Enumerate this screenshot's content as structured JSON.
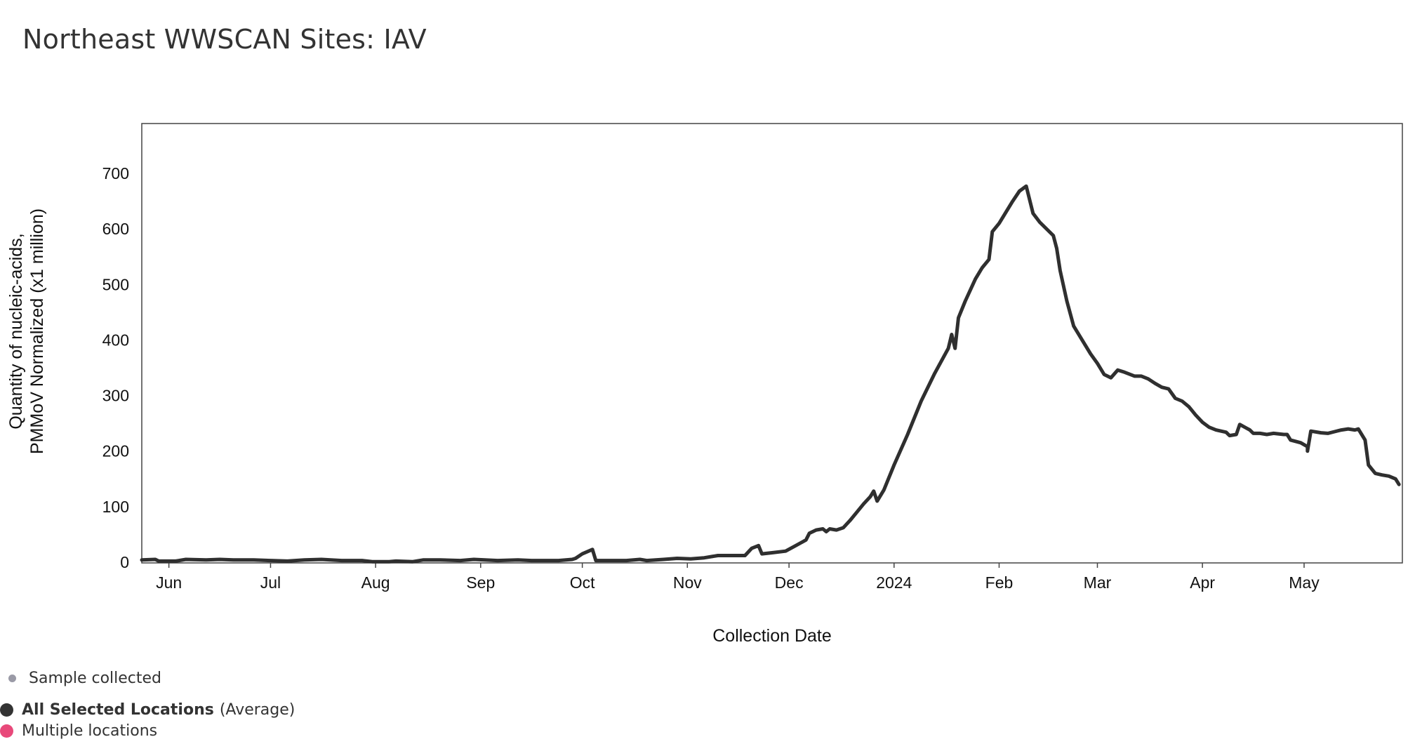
{
  "page": {
    "title": "Northeast WWSCAN Sites: IAV"
  },
  "legend": {
    "sample_label": "Sample collected",
    "all_label": "All Selected Locations",
    "all_suffix": "(Average)",
    "multi_label": "Multiple locations"
  },
  "colors": {
    "line": "#2f2f2f",
    "sample_dot": "#9a9aa6",
    "all_dot": "#333333",
    "multi_dot": "#e8497a",
    "frame": "#444444"
  },
  "chart_data": {
    "type": "line",
    "title": "Northeast WWSCAN Sites: IAV",
    "xlabel": "Collection Date",
    "ylabel": "Quantity of nucleic-acids, PMMoV Normalized (x1 million)",
    "ylabel_lines": [
      "Quantity of nucleic-acids,",
      "PMMoV Normalized (x1 million)"
    ],
    "ylim": [
      0,
      780
    ],
    "xlim": [
      "2023-05-24",
      "2024-05-30"
    ],
    "y_ticks": [
      0,
      100,
      200,
      300,
      400,
      500,
      600,
      700
    ],
    "x_ticks": [
      {
        "label": "Jun",
        "date": "2023-06-01"
      },
      {
        "label": "Jul",
        "date": "2023-07-01"
      },
      {
        "label": "Aug",
        "date": "2023-08-01"
      },
      {
        "label": "Sep",
        "date": "2023-09-01"
      },
      {
        "label": "Oct",
        "date": "2023-10-01"
      },
      {
        "label": "Nov",
        "date": "2023-11-01"
      },
      {
        "label": "Dec",
        "date": "2023-12-01"
      },
      {
        "label": "2024",
        "date": "2024-01-01"
      },
      {
        "label": "Feb",
        "date": "2024-02-01"
      },
      {
        "label": "Mar",
        "date": "2024-03-01"
      },
      {
        "label": "Apr",
        "date": "2024-04-01"
      },
      {
        "label": "May",
        "date": "2024-05-01"
      }
    ],
    "series": [
      {
        "name": "All Selected Locations (Average)",
        "points": [
          [
            "2023-05-24",
            4
          ],
          [
            "2023-05-28",
            5
          ],
          [
            "2023-05-29",
            2
          ],
          [
            "2023-06-03",
            2
          ],
          [
            "2023-06-06",
            5
          ],
          [
            "2023-06-12",
            4
          ],
          [
            "2023-06-16",
            5
          ],
          [
            "2023-06-20",
            4
          ],
          [
            "2023-06-26",
            4
          ],
          [
            "2023-07-01",
            3
          ],
          [
            "2023-07-06",
            2
          ],
          [
            "2023-07-11",
            4
          ],
          [
            "2023-07-16",
            5
          ],
          [
            "2023-07-22",
            3
          ],
          [
            "2023-07-28",
            3
          ],
          [
            "2023-07-31",
            1
          ],
          [
            "2023-08-05",
            1
          ],
          [
            "2023-08-07",
            2
          ],
          [
            "2023-08-12",
            1
          ],
          [
            "2023-08-15",
            4
          ],
          [
            "2023-08-20",
            4
          ],
          [
            "2023-08-26",
            3
          ],
          [
            "2023-08-30",
            5
          ],
          [
            "2023-09-06",
            3
          ],
          [
            "2023-09-12",
            4
          ],
          [
            "2023-09-16",
            3
          ],
          [
            "2023-09-20",
            3
          ],
          [
            "2023-09-24",
            3
          ],
          [
            "2023-09-28",
            5
          ],
          [
            "2023-09-29",
            7
          ],
          [
            "2023-10-01",
            15
          ],
          [
            "2023-10-04",
            23
          ],
          [
            "2023-10-05",
            3
          ],
          [
            "2023-10-10",
            3
          ],
          [
            "2023-10-14",
            3
          ],
          [
            "2023-10-18",
            5
          ],
          [
            "2023-10-20",
            3
          ],
          [
            "2023-10-25",
            5
          ],
          [
            "2023-10-29",
            7
          ],
          [
            "2023-11-02",
            6
          ],
          [
            "2023-11-06",
            8
          ],
          [
            "2023-11-10",
            12
          ],
          [
            "2023-11-14",
            12
          ],
          [
            "2023-11-18",
            12
          ],
          [
            "2023-11-20",
            25
          ],
          [
            "2023-11-22",
            30
          ],
          [
            "2023-11-23",
            15
          ],
          [
            "2023-11-26",
            17
          ],
          [
            "2023-11-30",
            20
          ],
          [
            "2023-12-03",
            30
          ],
          [
            "2023-12-06",
            40
          ],
          [
            "2023-12-07",
            52
          ],
          [
            "2023-12-09",
            58
          ],
          [
            "2023-12-11",
            60
          ],
          [
            "2023-12-12",
            55
          ],
          [
            "2023-12-13",
            60
          ],
          [
            "2023-12-15",
            58
          ],
          [
            "2023-12-17",
            62
          ],
          [
            "2023-12-19",
            75
          ],
          [
            "2023-12-21",
            90
          ],
          [
            "2023-12-23",
            105
          ],
          [
            "2023-12-25",
            118
          ],
          [
            "2023-12-26",
            128
          ],
          [
            "2023-12-27",
            110
          ],
          [
            "2023-12-29",
            130
          ],
          [
            "2024-01-01",
            175
          ],
          [
            "2024-01-05",
            230
          ],
          [
            "2024-01-09",
            290
          ],
          [
            "2024-01-13",
            340
          ],
          [
            "2024-01-17",
            385
          ],
          [
            "2024-01-18",
            410
          ],
          [
            "2024-01-19",
            385
          ],
          [
            "2024-01-20",
            440
          ],
          [
            "2024-01-22",
            470
          ],
          [
            "2024-01-25",
            510
          ],
          [
            "2024-01-27",
            530
          ],
          [
            "2024-01-29",
            545
          ],
          [
            "2024-01-30",
            595
          ],
          [
            "2024-02-01",
            610
          ],
          [
            "2024-02-03",
            630
          ],
          [
            "2024-02-05",
            650
          ],
          [
            "2024-02-07",
            668
          ],
          [
            "2024-02-09",
            677
          ],
          [
            "2024-02-11",
            628
          ],
          [
            "2024-02-13",
            612
          ],
          [
            "2024-02-17",
            588
          ],
          [
            "2024-02-18",
            565
          ],
          [
            "2024-02-19",
            525
          ],
          [
            "2024-02-21",
            470
          ],
          [
            "2024-02-23",
            425
          ],
          [
            "2024-02-26",
            395
          ],
          [
            "2024-02-28",
            375
          ],
          [
            "2024-03-01",
            358
          ],
          [
            "2024-03-03",
            338
          ],
          [
            "2024-03-05",
            332
          ],
          [
            "2024-03-07",
            346
          ],
          [
            "2024-03-09",
            342
          ],
          [
            "2024-03-12",
            335
          ],
          [
            "2024-03-14",
            335
          ],
          [
            "2024-03-16",
            330
          ],
          [
            "2024-03-18",
            322
          ],
          [
            "2024-03-20",
            315
          ],
          [
            "2024-03-22",
            312
          ],
          [
            "2024-03-24",
            295
          ],
          [
            "2024-03-26",
            290
          ],
          [
            "2024-03-28",
            280
          ],
          [
            "2024-03-30",
            265
          ],
          [
            "2024-04-01",
            252
          ],
          [
            "2024-04-03",
            243
          ],
          [
            "2024-04-05",
            238
          ],
          [
            "2024-04-08",
            234
          ],
          [
            "2024-04-09",
            228
          ],
          [
            "2024-04-11",
            230
          ],
          [
            "2024-04-12",
            248
          ],
          [
            "2024-04-15",
            238
          ],
          [
            "2024-04-16",
            232
          ],
          [
            "2024-04-18",
            232
          ],
          [
            "2024-04-20",
            230
          ],
          [
            "2024-04-22",
            232
          ],
          [
            "2024-04-25",
            230
          ],
          [
            "2024-04-26",
            230
          ],
          [
            "2024-04-27",
            220
          ],
          [
            "2024-04-30",
            215
          ],
          [
            "2024-05-02",
            208
          ],
          [
            "2024-05-02",
            200
          ],
          [
            "2024-05-03",
            236
          ],
          [
            "2024-05-06",
            233
          ],
          [
            "2024-05-08",
            232
          ],
          [
            "2024-05-10",
            235
          ],
          [
            "2024-05-12",
            238
          ],
          [
            "2024-05-14",
            240
          ],
          [
            "2024-05-16",
            238
          ],
          [
            "2024-05-17",
            240
          ],
          [
            "2024-05-19",
            220
          ],
          [
            "2024-05-20",
            175
          ],
          [
            "2024-05-22",
            160
          ],
          [
            "2024-05-24",
            157
          ],
          [
            "2024-05-26",
            155
          ],
          [
            "2024-05-28",
            150
          ],
          [
            "2024-05-29",
            140
          ]
        ]
      }
    ]
  }
}
